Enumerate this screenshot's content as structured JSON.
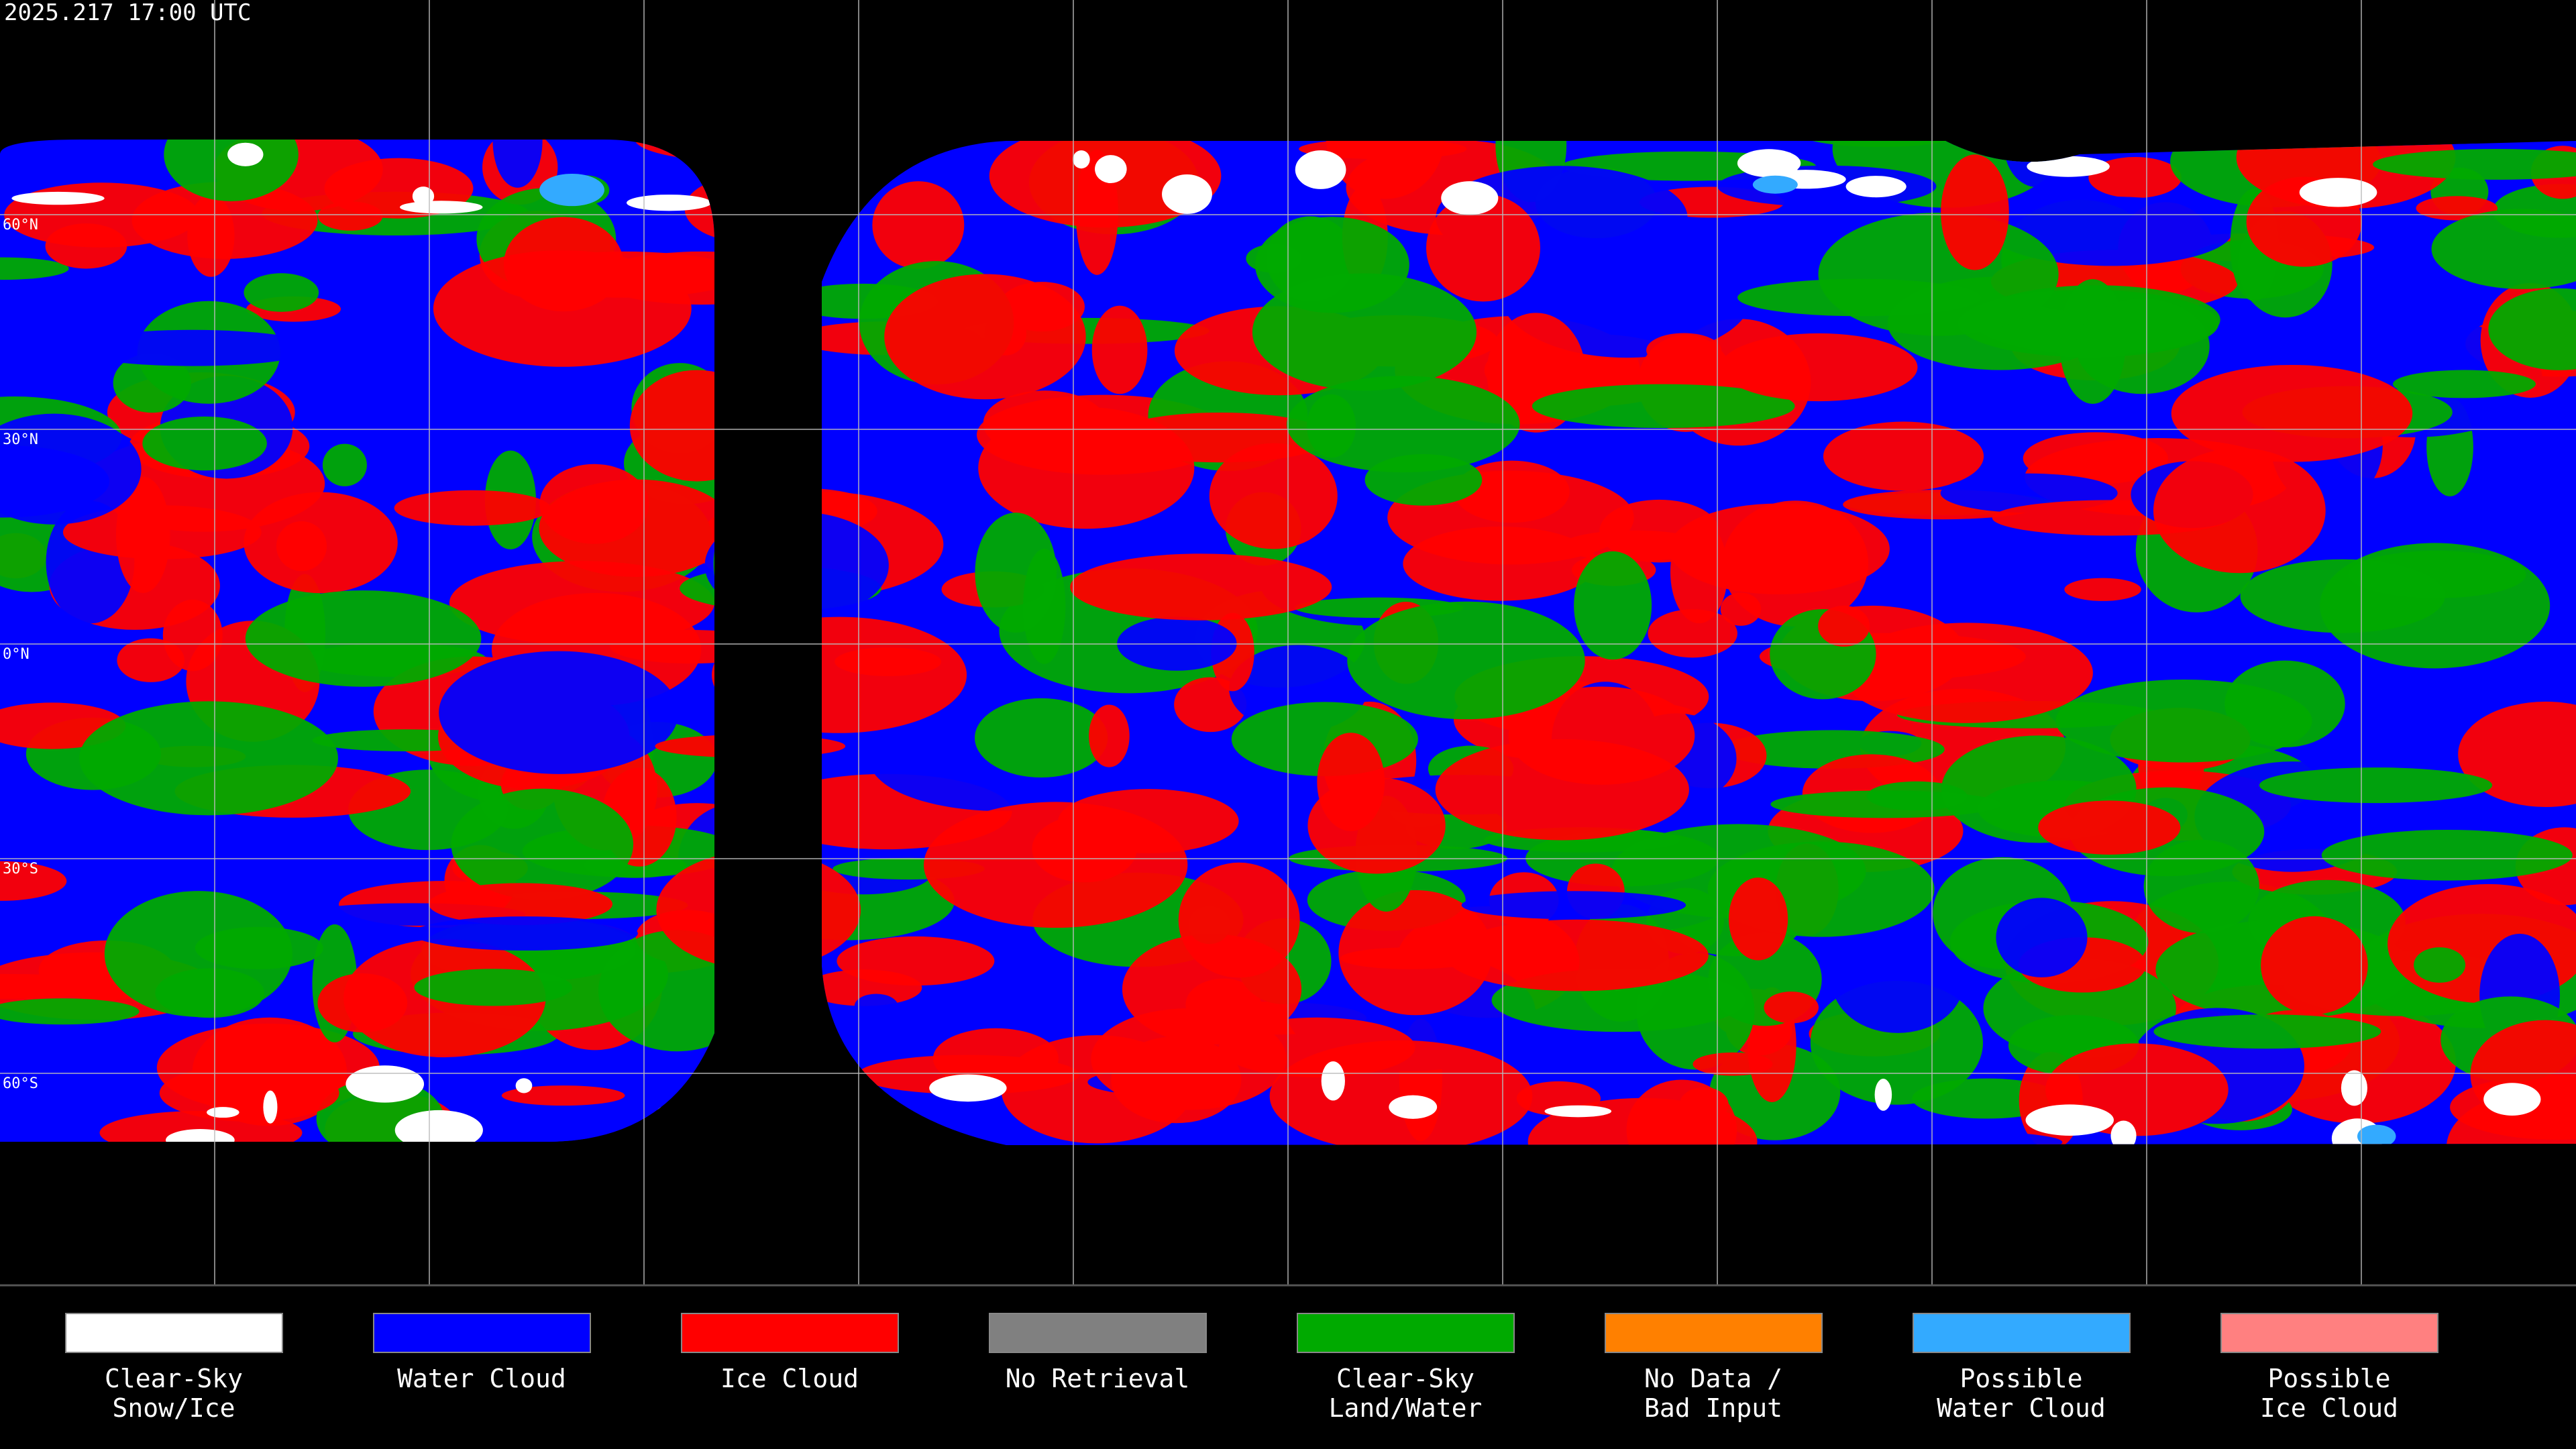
{
  "header": {
    "title": "2025.217 17:00 UTC"
  },
  "map": {
    "latitude_labels": [
      "60°N",
      "30°N",
      "0°N",
      "30°S",
      "60°S"
    ]
  },
  "legend": {
    "items": [
      {
        "label": [
          "Clear-Sky",
          "Snow/Ice"
        ],
        "color": "#ffffff"
      },
      {
        "label": [
          "Water Cloud"
        ],
        "color": "#0000ff"
      },
      {
        "label": [
          "Ice Cloud"
        ],
        "color": "#ff0000"
      },
      {
        "label": [
          "No Retrieval"
        ],
        "color": "#808080"
      },
      {
        "label": [
          "Clear-Sky",
          "Land/Water"
        ],
        "color": "#00aa00"
      },
      {
        "label": [
          "No Data /",
          "Bad Input"
        ],
        "color": "#ff8000"
      },
      {
        "label": [
          "Possible",
          "Water Cloud"
        ],
        "color": "#33aaff"
      },
      {
        "label": [
          "Possible",
          "Ice Cloud"
        ],
        "color": "#ff8080"
      }
    ]
  }
}
